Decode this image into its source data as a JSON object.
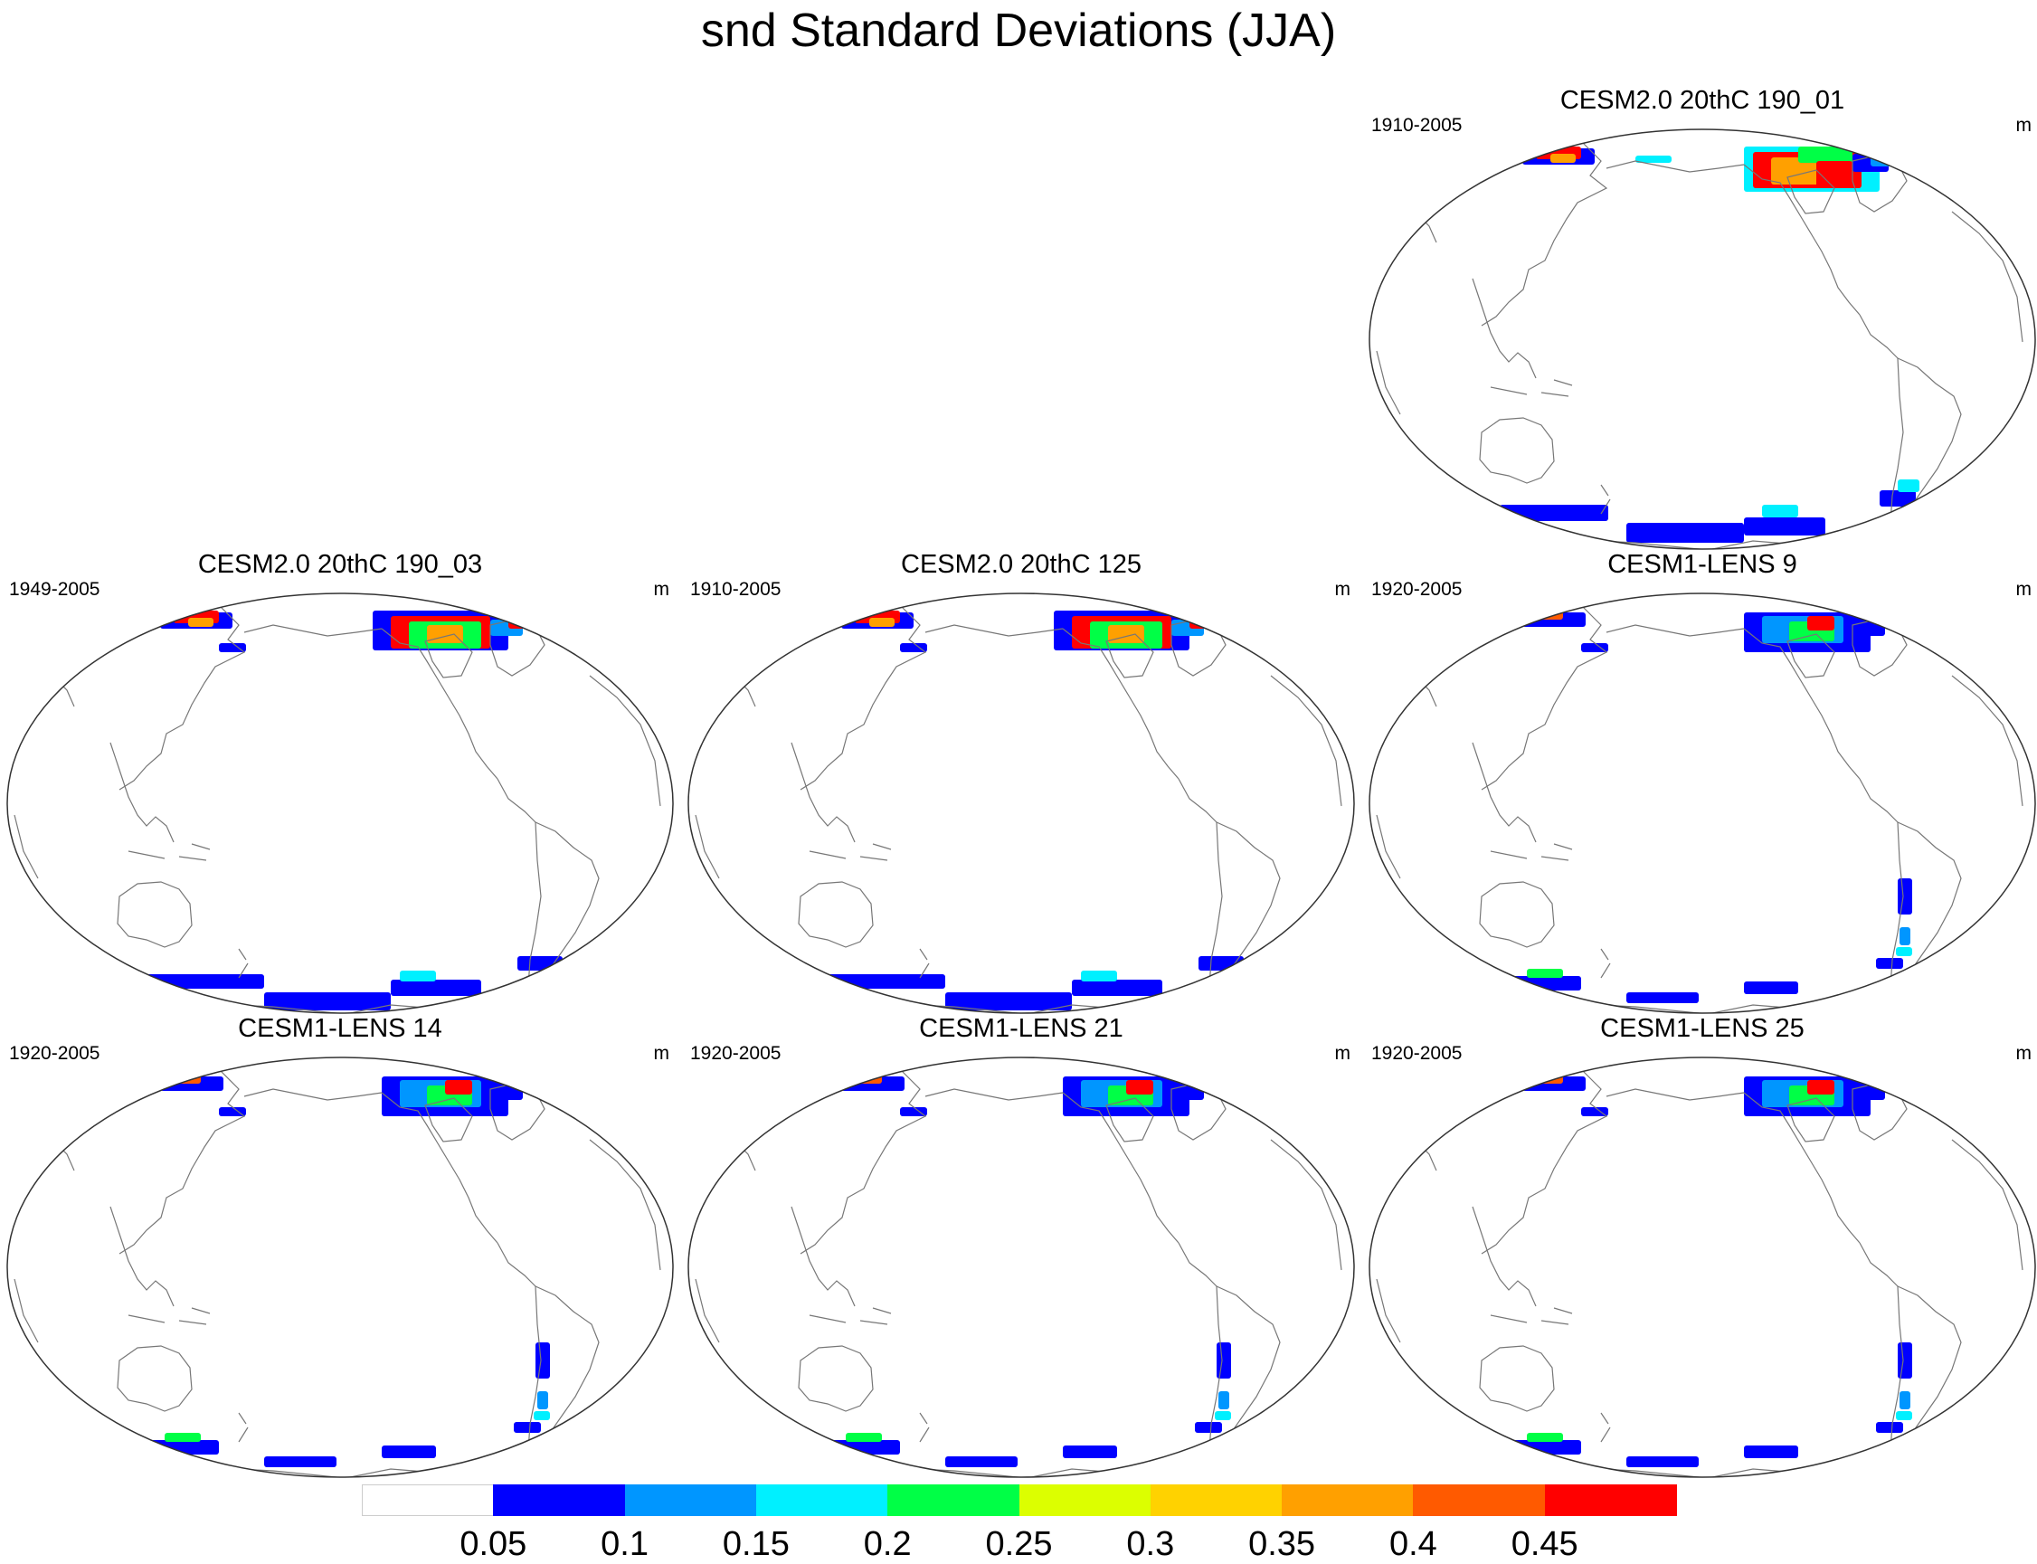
{
  "title": "snd Standard Deviations (JJA)",
  "panels": [
    {
      "title": "CESM2.0 20thC 190_01",
      "period": "1910-2005",
      "units": "m"
    },
    {
      "title": "CESM2.0 20thC 190_03",
      "period": "1949-2005",
      "units": "m"
    },
    {
      "title": "CESM2.0 20thC 125",
      "period": "1910-2005",
      "units": "m"
    },
    {
      "title": "CESM1-LENS 9",
      "period": "1920-2005",
      "units": "m"
    },
    {
      "title": "CESM1-LENS 14",
      "period": "1920-2005",
      "units": "m"
    },
    {
      "title": "CESM1-LENS 21",
      "period": "1920-2005",
      "units": "m"
    },
    {
      "title": "CESM1-LENS 25",
      "period": "1920-2005",
      "units": "m"
    }
  ],
  "colorbar": {
    "labels": [
      "0.05",
      "0.1",
      "0.15",
      "0.2",
      "0.25",
      "0.3",
      "0.35",
      "0.4",
      "0.45"
    ],
    "colors": [
      "#ffffff",
      "#0000ff",
      "#0096ff",
      "#00f0ff",
      "#00ff46",
      "#dcff00",
      "#ffd200",
      "#ffa000",
      "#ff5a00",
      "#ff0000"
    ]
  }
}
